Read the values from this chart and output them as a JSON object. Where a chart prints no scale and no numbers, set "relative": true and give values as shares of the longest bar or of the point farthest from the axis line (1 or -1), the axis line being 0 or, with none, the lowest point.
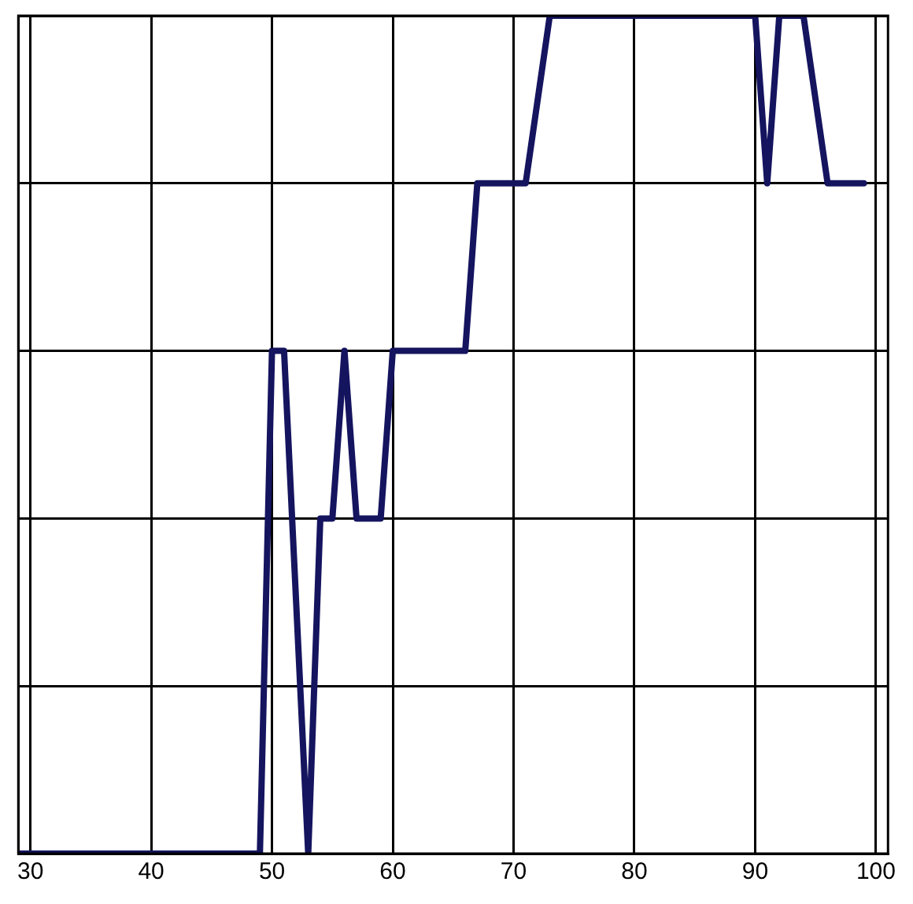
{
  "chart_data": {
    "type": "line",
    "relative": true,
    "x": [
      29,
      49,
      50,
      51,
      53,
      54,
      55,
      56,
      57,
      59,
      60,
      66,
      67,
      71,
      73,
      90,
      91,
      92,
      94,
      96,
      99
    ],
    "series": [
      {
        "color": "#14145f",
        "values": [
          0,
          0,
          0.6,
          0.6,
          0,
          0.4,
          0.4,
          0.6,
          0.4,
          0.4,
          0.6,
          0.6,
          0.8,
          0.8,
          1,
          1,
          0.8,
          1,
          1,
          0.8,
          0.8
        ]
      }
    ],
    "xlim": [
      29,
      101
    ],
    "xticks": [
      30,
      40,
      50,
      60,
      70,
      80,
      90,
      100
    ],
    "grid": true,
    "legend": false,
    "marker": "none",
    "line_style": "solid"
  }
}
